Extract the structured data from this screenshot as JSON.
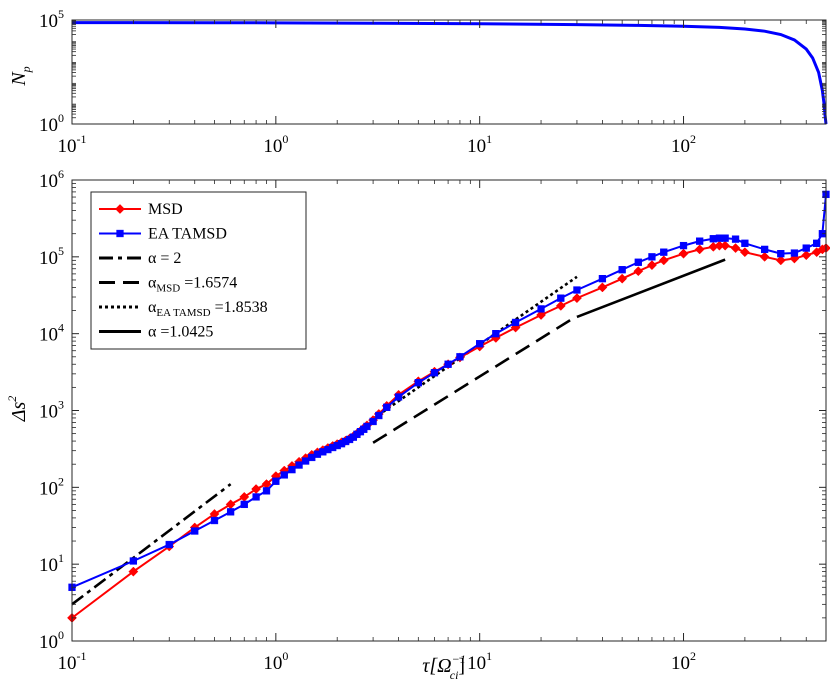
{
  "chart_data": [
    {
      "type": "line",
      "ylabel": {
        "main": "N",
        "sub": "p"
      },
      "xscale": "log",
      "yscale": "log",
      "xlim": [
        0.1,
        500
      ],
      "ylim": [
        1,
        100000
      ],
      "x_ticks": [
        {
          "value": 0.1,
          "base": "10",
          "exp": "-1"
        },
        {
          "value": 1,
          "base": "10",
          "exp": "0"
        },
        {
          "value": 10,
          "base": "10",
          "exp": "1"
        },
        {
          "value": 100,
          "base": "10",
          "exp": "2"
        }
      ],
      "y_ticks": [
        {
          "value": 1,
          "base": "10",
          "exp": "0"
        },
        {
          "value": 100000,
          "base": "10",
          "exp": "5"
        }
      ],
      "series": [
        {
          "name": "Np",
          "color": "#0000ff",
          "x": [
            0.1,
            0.5,
            1,
            3,
            10,
            30,
            60,
            100,
            150,
            200,
            250,
            300,
            350,
            400,
            430,
            460,
            480,
            490,
            495,
            500
          ],
          "y": [
            75000,
            74000,
            73000,
            70000,
            66000,
            60000,
            55000,
            50000,
            44000,
            37000,
            29000,
            20000,
            11000,
            4000,
            1500,
            300,
            40,
            8,
            2.5,
            1
          ]
        }
      ]
    },
    {
      "type": "line",
      "xlabel": {
        "main": "τ[Ω",
        "sub": "ci",
        "sup": "−1",
        "close": "]"
      },
      "ylabel": {
        "main": "Δs",
        "sup": "2"
      },
      "xscale": "log",
      "yscale": "log",
      "xlim": [
        0.1,
        500
      ],
      "ylim": [
        1,
        1000000
      ],
      "x_ticks": [
        {
          "value": 0.1,
          "base": "10",
          "exp": "-1"
        },
        {
          "value": 1,
          "base": "10",
          "exp": "0"
        },
        {
          "value": 10,
          "base": "10",
          "exp": "1"
        },
        {
          "value": 100,
          "base": "10",
          "exp": "2"
        }
      ],
      "y_ticks": [
        {
          "value": 1,
          "base": "10",
          "exp": "0"
        },
        {
          "value": 10,
          "base": "10",
          "exp": "1"
        },
        {
          "value": 100,
          "base": "10",
          "exp": "2"
        },
        {
          "value": 1000,
          "base": "10",
          "exp": "3"
        },
        {
          "value": 10000,
          "base": "10",
          "exp": "4"
        },
        {
          "value": 100000,
          "base": "10",
          "exp": "5"
        },
        {
          "value": 1000000,
          "base": "10",
          "exp": "6"
        }
      ],
      "legend": {
        "position": "top-left",
        "entries": [
          {
            "series": "MSD",
            "label": "MSD"
          },
          {
            "series": "EA TAMSD",
            "label": "EA TAMSD"
          },
          {
            "series": "fit_ballistic",
            "label": "α = 2"
          },
          {
            "series": "fit_msd",
            "label": "α",
            "sub": "MSD",
            "tail": " =1.6574"
          },
          {
            "series": "fit_eatamsd",
            "label": "α",
            "sub": "EA TAMSD",
            "tail": " =1.8538"
          },
          {
            "series": "fit_late",
            "label": "α =1.0425"
          }
        ]
      },
      "series": [
        {
          "name": "MSD",
          "color": "#ff0000",
          "marker": "diamond",
          "x": [
            0.1,
            0.2,
            0.3,
            0.4,
            0.5,
            0.6,
            0.7,
            0.8,
            0.9,
            1.0,
            1.1,
            1.2,
            1.3,
            1.4,
            1.5,
            1.6,
            1.7,
            1.8,
            1.9,
            2.0,
            2.1,
            2.2,
            2.3,
            2.4,
            2.5,
            2.6,
            2.7,
            2.8,
            3.0,
            3.2,
            3.5,
            4,
            5,
            6,
            7,
            8,
            10,
            12,
            15,
            20,
            25,
            30,
            40,
            50,
            60,
            70,
            80,
            100,
            120,
            140,
            150,
            160,
            180,
            200,
            250,
            300,
            350,
            400,
            450,
            480,
            500
          ],
          "y": [
            2,
            8,
            17,
            30,
            45,
            60,
            75,
            95,
            110,
            140,
            165,
            190,
            215,
            240,
            265,
            285,
            305,
            325,
            345,
            365,
            385,
            405,
            430,
            460,
            500,
            540,
            590,
            640,
            750,
            900,
            1150,
            1600,
            2400,
            3200,
            4000,
            4900,
            6800,
            8800,
            12000,
            17500,
            23000,
            29000,
            40000,
            52000,
            65000,
            78000,
            90000,
            110000,
            125000,
            135000,
            140000,
            140000,
            130000,
            115000,
            100000,
            90000,
            95000,
            105000,
            115000,
            125000,
            130000
          ]
        },
        {
          "name": "EA TAMSD",
          "color": "#0000ff",
          "marker": "square",
          "x": [
            0.1,
            0.2,
            0.3,
            0.4,
            0.5,
            0.6,
            0.7,
            0.8,
            0.9,
            1.0,
            1.1,
            1.2,
            1.3,
            1.4,
            1.5,
            1.6,
            1.7,
            1.8,
            1.9,
            2.0,
            2.1,
            2.2,
            2.3,
            2.4,
            2.5,
            2.6,
            2.7,
            2.8,
            3.0,
            3.2,
            3.5,
            4,
            5,
            6,
            7,
            8,
            10,
            12,
            15,
            20,
            25,
            30,
            40,
            50,
            60,
            70,
            80,
            100,
            120,
            140,
            150,
            160,
            180,
            200,
            250,
            300,
            350,
            400,
            450,
            480,
            500
          ],
          "y": [
            5,
            11,
            18,
            27,
            37,
            48,
            60,
            75,
            90,
            120,
            145,
            170,
            195,
            220,
            245,
            270,
            290,
            310,
            330,
            350,
            370,
            395,
            420,
            450,
            490,
            530,
            570,
            620,
            720,
            860,
            1100,
            1500,
            2300,
            3100,
            4000,
            5000,
            7400,
            10000,
            14000,
            21000,
            29000,
            37000,
            52000,
            68000,
            85000,
            100000,
            115000,
            140000,
            160000,
            172000,
            175000,
            175000,
            170000,
            150000,
            125000,
            110000,
            112000,
            130000,
            150000,
            200000,
            650000
          ]
        },
        {
          "name": "fit_ballistic",
          "color": "#000000",
          "dash": "dashdot",
          "x": [
            0.1,
            0.6
          ],
          "y": [
            3,
            110
          ]
        },
        {
          "name": "fit_msd",
          "color": "#000000",
          "dash": "dashed",
          "x": [
            3,
            30
          ],
          "y": [
            380,
            17000
          ]
        },
        {
          "name": "fit_eatamsd",
          "color": "#000000",
          "dash": "dotted",
          "x": [
            3,
            30
          ],
          "y": [
            780,
            55000
          ]
        },
        {
          "name": "fit_late",
          "color": "#000000",
          "dash": "solid",
          "x": [
            30,
            160
          ],
          "y": [
            16500,
            92000
          ]
        }
      ]
    }
  ]
}
